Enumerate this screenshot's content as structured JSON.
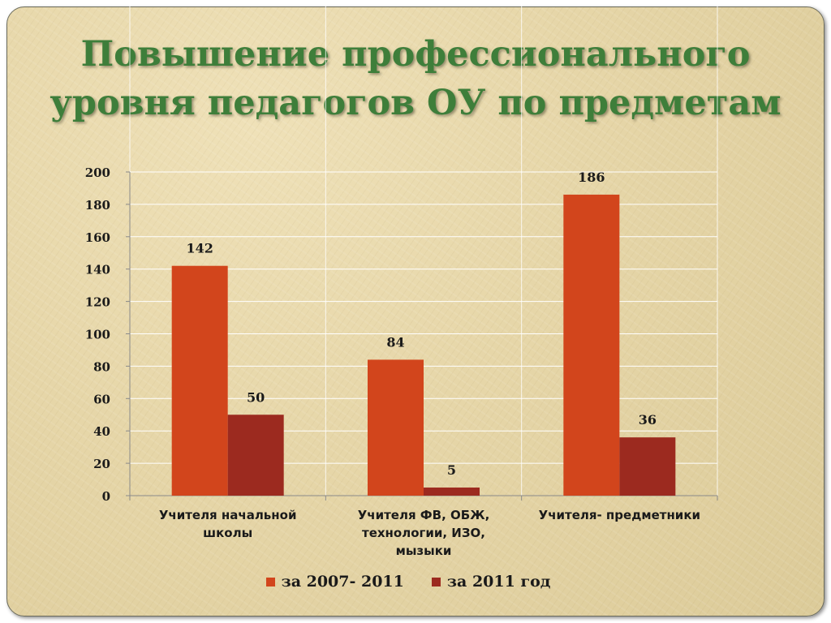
{
  "title": {
    "line1": "Повышение профессионального",
    "line2": "уровня педагогов ОУ по предметам"
  },
  "colors": {
    "series1": "#d2451c",
    "series2": "#9c2a1f",
    "title": "#3e7e3a",
    "grid": "#ffffff"
  },
  "chart_data": {
    "type": "bar",
    "title": "Повышение профессионального уровня педагогов ОУ по предметам",
    "categories": [
      "Учителя начальной школы",
      "Учителя ФВ, ОБЖ, технологии, ИЗО, мызыки",
      "Учителя- предметники"
    ],
    "category_lines": [
      [
        "Учителя начальной",
        "школы"
      ],
      [
        "Учителя ФВ, ОБЖ,",
        "технологии, ИЗО,",
        "мызыки"
      ],
      [
        "Учителя- предметники"
      ]
    ],
    "series": [
      {
        "name": "за 2007- 2011",
        "values": [
          142,
          84,
          186
        ]
      },
      {
        "name": "за 2011 год",
        "values": [
          50,
          5,
          36
        ]
      }
    ],
    "y_ticks": [
      "0",
      "20",
      "40",
      "60",
      "80",
      "100",
      "120",
      "140",
      "160",
      "180",
      "200"
    ],
    "ylim": [
      0,
      200
    ],
    "grid": true,
    "legend_position": "bottom"
  }
}
